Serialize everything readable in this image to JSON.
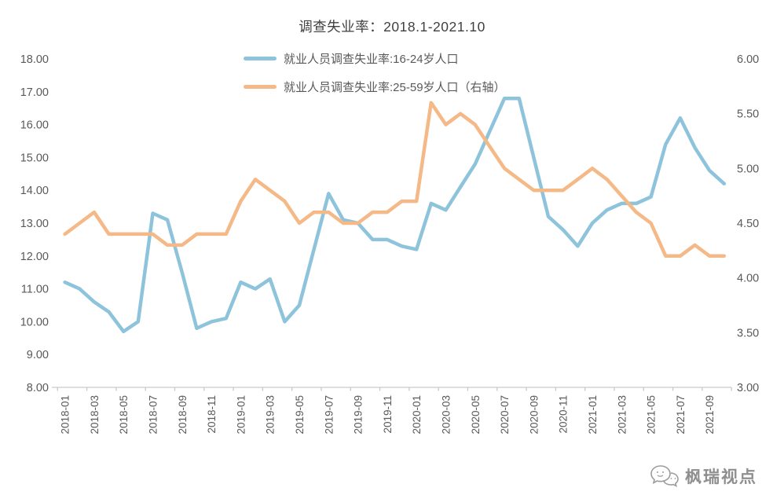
{
  "title": "调查失业率：2018.1-2021.10",
  "watermark": {
    "text": "枫瑞视点"
  },
  "colors": {
    "series_youth": "#8ec3dc",
    "series_adult": "#f5b988",
    "axis_line": "#c9c9c9",
    "text": "#595959",
    "title_text": "#3f3f3f",
    "watermark_gray": "#8f8f8f"
  },
  "chart_data": {
    "type": "line",
    "title": "调查失业率：2018.1-2021.10",
    "legend_position": "top-center",
    "grid": false,
    "months": [
      "2018-01",
      "2018-02",
      "2018-03",
      "2018-04",
      "2018-05",
      "2018-06",
      "2018-07",
      "2018-08",
      "2018-09",
      "2018-10",
      "2018-11",
      "2018-12",
      "2019-01",
      "2019-02",
      "2019-03",
      "2019-04",
      "2019-05",
      "2019-06",
      "2019-07",
      "2019-08",
      "2019-09",
      "2019-10",
      "2019-11",
      "2019-12",
      "2020-01",
      "2020-02",
      "2020-03",
      "2020-04",
      "2020-05",
      "2020-06",
      "2020-07",
      "2020-08",
      "2020-09",
      "2020-10",
      "2020-11",
      "2020-12",
      "2021-01",
      "2021-02",
      "2021-03",
      "2021-04",
      "2021-05",
      "2021-06",
      "2021-07",
      "2021-08",
      "2021-09",
      "2021-10"
    ],
    "x_tick_labels": [
      "2018-01",
      "2018-03",
      "2018-05",
      "2018-07",
      "2018-09",
      "2018-11",
      "2019-01",
      "2019-03",
      "2019-05",
      "2019-07",
      "2019-09",
      "2019-11",
      "2020-01",
      "2020-03",
      "2020-05",
      "2020-07",
      "2020-09",
      "2020-11",
      "2021-01",
      "2021-03",
      "2021-05",
      "2021-07",
      "2021-09"
    ],
    "x_label_every": 2,
    "series": [
      {
        "name": "就业人员调查失业率:16-24岁人口",
        "axis": "left",
        "color": "#8ec3dc",
        "values": [
          11.2,
          11.0,
          10.6,
          10.3,
          9.7,
          10.0,
          13.3,
          13.1,
          11.5,
          9.8,
          10.0,
          10.1,
          11.2,
          11.0,
          11.3,
          10.0,
          10.5,
          12.2,
          13.9,
          13.1,
          13.0,
          12.5,
          12.5,
          12.3,
          12.2,
          13.6,
          13.4,
          14.1,
          14.8,
          15.8,
          16.8,
          16.8,
          15.0,
          13.2,
          12.8,
          12.3,
          13.0,
          13.4,
          13.6,
          13.6,
          13.8,
          15.4,
          16.2,
          15.3,
          14.6,
          14.2
        ]
      },
      {
        "name": "就业人员调查失业率:25-59岁人口（右轴）",
        "axis": "right",
        "color": "#f5b988",
        "values": [
          4.4,
          4.5,
          4.6,
          4.4,
          4.4,
          4.4,
          4.4,
          4.3,
          4.3,
          4.4,
          4.4,
          4.4,
          4.7,
          4.9,
          4.8,
          4.7,
          4.5,
          4.6,
          4.6,
          4.5,
          4.5,
          4.6,
          4.6,
          4.7,
          4.7,
          5.6,
          5.4,
          5.5,
          5.4,
          5.2,
          5.0,
          4.9,
          4.8,
          4.8,
          4.8,
          4.9,
          5.0,
          4.9,
          4.75,
          4.6,
          4.5,
          4.2,
          4.2,
          4.3,
          4.2,
          4.2
        ]
      }
    ],
    "left_axis": {
      "min": 8,
      "max": 18,
      "tick_values": [
        18,
        17,
        16,
        15,
        14,
        13,
        12,
        11,
        10,
        9,
        8
      ],
      "tick_labels": [
        "18.00",
        "17.00",
        "16.00",
        "15.00",
        "14.00",
        "13.00",
        "12.00",
        "11.00",
        "10.00",
        "9.00",
        "8.00"
      ]
    },
    "right_axis": {
      "min": 3,
      "max": 6,
      "tick_values": [
        6,
        5.5,
        5,
        4.5,
        4,
        3.5,
        3
      ],
      "tick_labels": [
        "6.00",
        "5.50",
        "5.00",
        "4.50",
        "4.00",
        "3.50",
        "3.00"
      ]
    }
  }
}
